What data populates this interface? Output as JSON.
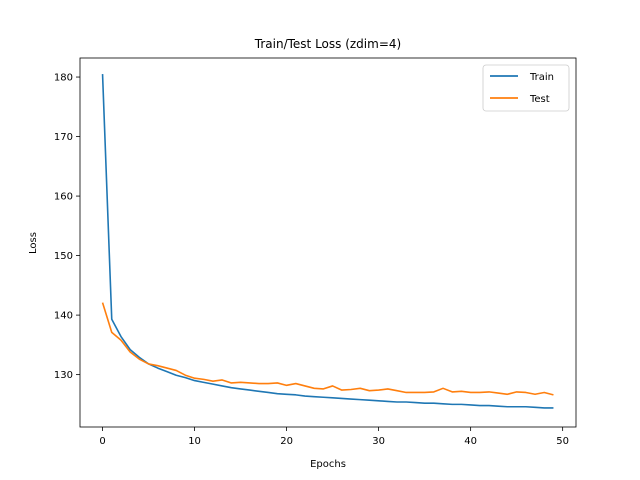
{
  "chart_data": {
    "type": "line",
    "title": "Train/Test Loss (zdim=4)",
    "xlabel": "Epochs",
    "ylabel": "Loss",
    "xlim": [
      -2.45,
      51.45
    ],
    "ylim": [
      121.2,
      183.2
    ],
    "xticks": [
      0,
      10,
      20,
      30,
      40,
      50
    ],
    "yticks": [
      130,
      140,
      150,
      160,
      170,
      180
    ],
    "grid": false,
    "legend_position": "top-right",
    "x": [
      0,
      1,
      2,
      3,
      4,
      5,
      6,
      7,
      8,
      9,
      10,
      11,
      12,
      13,
      14,
      15,
      16,
      17,
      18,
      19,
      20,
      21,
      22,
      23,
      24,
      25,
      26,
      27,
      28,
      29,
      30,
      31,
      32,
      33,
      34,
      35,
      36,
      37,
      38,
      39,
      40,
      41,
      42,
      43,
      44,
      45,
      46,
      47,
      48,
      49
    ],
    "series": [
      {
        "name": "Train",
        "color": "#1f77b4",
        "values": [
          180.5,
          139.3,
          136.4,
          134.2,
          132.9,
          131.8,
          131.1,
          130.5,
          129.9,
          129.5,
          129.0,
          128.7,
          128.4,
          128.1,
          127.8,
          127.6,
          127.4,
          127.2,
          127.0,
          126.8,
          126.7,
          126.6,
          126.4,
          126.3,
          126.2,
          126.1,
          126.0,
          125.9,
          125.8,
          125.7,
          125.6,
          125.5,
          125.4,
          125.4,
          125.3,
          125.2,
          125.2,
          125.1,
          125.0,
          125.0,
          124.9,
          124.8,
          124.8,
          124.7,
          124.6,
          124.6,
          124.6,
          124.5,
          124.4,
          124.4
        ]
      },
      {
        "name": "Test",
        "color": "#ff7f0e",
        "values": [
          142.1,
          137.1,
          135.8,
          133.8,
          132.6,
          131.8,
          131.5,
          131.1,
          130.7,
          129.9,
          129.4,
          129.2,
          128.9,
          129.1,
          128.6,
          128.7,
          128.6,
          128.5,
          128.5,
          128.6,
          128.2,
          128.5,
          128.1,
          127.7,
          127.6,
          128.1,
          127.4,
          127.5,
          127.7,
          127.3,
          127.4,
          127.6,
          127.3,
          127.0,
          127.0,
          127.0,
          127.1,
          127.7,
          127.1,
          127.2,
          127.0,
          127.0,
          127.1,
          126.9,
          126.7,
          127.1,
          127.0,
          126.7,
          127.0,
          126.6
        ]
      }
    ]
  }
}
